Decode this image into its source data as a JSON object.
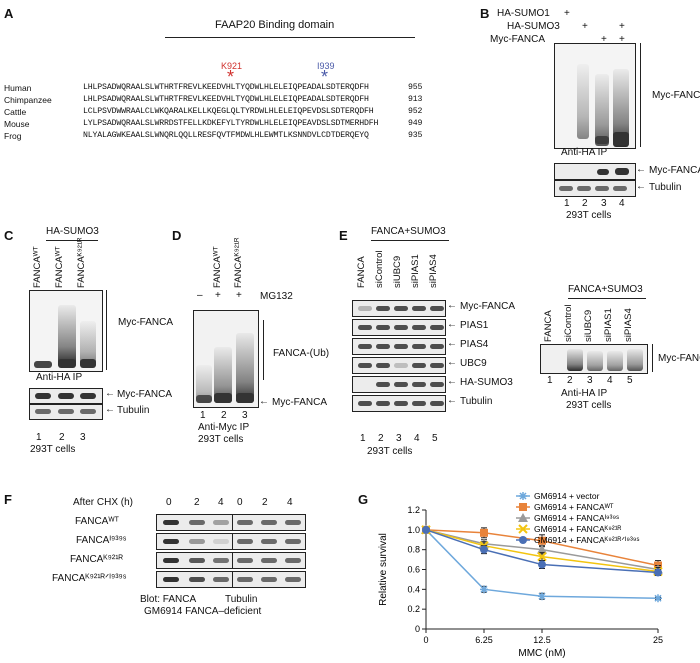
{
  "panelA": {
    "letter": "A",
    "domain_title": "FAAP20 Binding domain",
    "k_label": "K921",
    "i_label": "I939",
    "k_color": "#d0312d",
    "i_color": "#4a5aa8",
    "rows": [
      {
        "species": "Human",
        "seq": "LHLPSADWQRAALSLWTHRTFREVLKEEDVHLTYQDWLHLELEIQPEADALSDTERQDFH",
        "num": "955"
      },
      {
        "species": "Chimpanzee",
        "seq": "LHLPSADWQRAALSLWTHRTFREVLKEEDVHLTYQDWLHLELEIQPEADALSDTERQDFH",
        "num": "913"
      },
      {
        "species": "Cattle",
        "seq": "LCLPSVDWWRAALCLWKQARALKELLKQEGLQLTYRDWLHLELEIQPEVDSLSDTERQDFH",
        "num": "952"
      },
      {
        "species": "Mouse",
        "seq": "LYLPSADWQRAALSLWRRDSTFELLKDKEFYLTYRDWLHLELEIQPEAVDSLSDTMERHDFH",
        "num": "949"
      },
      {
        "species": "Frog",
        "seq": "NLYALAGWKEAALSLWNQRLQQLLRESFQVTFMDWLHLEWMTLKSNNDVLCDTDERQEYQ",
        "num": "935"
      }
    ]
  },
  "panelB": {
    "letter": "B",
    "rows": [
      {
        "label": "HA-SUMO1",
        "marks": [
          "+",
          "",
          "",
          ""
        ]
      },
      {
        "label": "HA-SUMO3",
        "marks": [
          "",
          "+",
          "",
          "+"
        ]
      },
      {
        "label": "Myc-FANCA",
        "marks": [
          "",
          "",
          "+",
          "+"
        ]
      }
    ],
    "ip_label": "Anti-HA IP",
    "smear_label": "Myc-FANCA",
    "row1": "Myc-FANCA",
    "row2": "Tubulin",
    "lanes": [
      "1",
      "2",
      "3",
      "4"
    ],
    "cells": "293T cells"
  },
  "panelC": {
    "letter": "C",
    "header": "HA-SUMO3",
    "cols": [
      "FANCAᵂᵀ",
      "FANCAᵂᵀ",
      "FANCAᴷ⁹²¹ᴿ"
    ],
    "smear_label": "Myc-FANCA",
    "ip_label": "Anti-HA IP",
    "row1": "Myc-FANCA",
    "row2": "Tubulin",
    "lanes": [
      "1",
      "2",
      "3"
    ],
    "cells": "293T cells"
  },
  "panelD": {
    "letter": "D",
    "cols": [
      "–",
      "FANCAᵂᵀ",
      "FANCAᵂᵀ",
      "FANCAᴷ⁹²¹ᴿ"
    ],
    "signs": [
      "–",
      "+",
      "+"
    ],
    "mg132": "MG132",
    "ub_label": "FANCA-(Ub)",
    "myc_label": "Myc-FANCA",
    "lanes": [
      "1",
      "2",
      "3"
    ],
    "ip_label": "Anti-Myc IP",
    "cells": "293T cells"
  },
  "panelE": {
    "letter": "E",
    "header": "FANCA+SUMO3",
    "cols": [
      "FANCA",
      "siControl",
      "siUBC9",
      "siPIAS1",
      "siPIAS4"
    ],
    "rows": [
      "Myc-FANCA",
      "PIAS1",
      "PIAS4",
      "UBC9",
      "HA-SUMO3",
      "Tubulin"
    ],
    "lanes": [
      "1",
      "2",
      "3",
      "4",
      "5"
    ],
    "cells": "293T cells",
    "right_header": "FANCA+SUMO3",
    "right_cols": [
      "FANCA",
      "siControl",
      "siUBC9",
      "siPIAS1",
      "siPIAS4"
    ],
    "right_label": "Myc-FANCA",
    "right_ip": "Anti-HA IP",
    "right_cells": "293T cells"
  },
  "panelF": {
    "letter": "F",
    "chx_label": "After CHX (h)",
    "times": [
      "0",
      "2",
      "4",
      "0",
      "2",
      "4"
    ],
    "rows": [
      "FANCAᵂᵀ",
      "FANCAᴵ⁹³⁹ˢ",
      "FANCAᴷ⁹²¹ᴿ",
      "FANCAᴷ⁹²¹ᴿᐟᴵ⁹³⁹ˢ"
    ],
    "blot_label": "Blot: FANCA",
    "tubulin_label": "Tubulin",
    "cell_line": "GM6914 FANCA–deficient"
  },
  "chart_data": {
    "type": "line",
    "panel_letter": "G",
    "xlabel": "MMC (nM)",
    "ylabel": "Relative survival",
    "x": [
      0,
      6.25,
      12.5,
      25
    ],
    "x_ticks": [
      "0",
      "6.25",
      "12.5",
      "25"
    ],
    "y_ticks": [
      "0",
      "0.2",
      "0.4",
      "0.6",
      "0.8",
      "1.0",
      "1.2"
    ],
    "ylim": [
      0,
      1.2
    ],
    "series": [
      {
        "name": "GM6914 + vector",
        "color": "#6ea8dc",
        "marker": "star",
        "values": [
          1.0,
          0.4,
          0.33,
          0.31
        ],
        "err": [
          0.0,
          0.03,
          0.03,
          0.01
        ]
      },
      {
        "name": "GM6914 + FANCAᵂᵀ",
        "color": "#e8833a",
        "marker": "square",
        "values": [
          1.0,
          0.97,
          0.89,
          0.64
        ],
        "err": [
          0.0,
          0.05,
          0.06,
          0.05
        ]
      },
      {
        "name": "GM6914 + FANCAᴵ⁹³⁹ˢ",
        "color": "#9a9a9a",
        "marker": "triangle",
        "values": [
          1.0,
          0.86,
          0.8,
          0.6
        ],
        "err": [
          0.0,
          0.04,
          0.04,
          0.04
        ]
      },
      {
        "name": "GM6914 + FANCAᴷ⁹²¹ᴿ",
        "color": "#f2c40f",
        "marker": "x",
        "values": [
          1.0,
          0.84,
          0.73,
          0.58
        ],
        "err": [
          0.0,
          0.04,
          0.04,
          0.04
        ]
      },
      {
        "name": "GM6914 + FANCAᴷ⁹²¹ᴿᐟᴵ⁹³⁹ˢ",
        "color": "#4a6fb5",
        "marker": "circle",
        "values": [
          1.0,
          0.8,
          0.65,
          0.57
        ],
        "err": [
          0.0,
          0.04,
          0.04,
          0.03
        ]
      }
    ]
  }
}
